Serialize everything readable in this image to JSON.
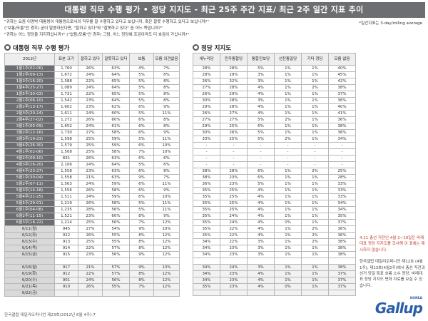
{
  "title": "대통령 직무 수행 평가 • 정당 지지도 - 최근 25주 주간 지표/ 최근 2주 일간 지표 추이",
  "questions": [
    "\"귀하는 요즘 이명박 대통령이 대통령으로서의 직무를 잘 수행하고 있다고 보십니까, 혹은 잘못 수행하고 있다고 보십니까?\"",
    "(\"보통/모름\"인 경우) 굳이 말씀하신다면, \"잘하고 있다\"와 \"잘못하고 있다\" 중 어느 쪽입니까?\"",
    "\"귀하는 어느 정당을 지지하십니까?\" (\"없음/모름\"인 경우) 그럼, 어느 정당에 조금이라도 더 호감이 가십니까?\""
  ],
  "note": "*일간지표는 3-day/rolling average",
  "approval": {
    "title": "대통령 직무 수행 평가",
    "headers": [
      "2012년",
      "표본 크기",
      "잘하고 있다",
      "잘못하고 있다",
      "보통",
      "모름 의견없음"
    ],
    "rows": [
      {
        "type": "wk",
        "label": "1월1주(02-06)",
        "n": "1,760",
        "good": "26%",
        "bad": "63%",
        "avg": "4%",
        "dk": "7%"
      },
      {
        "type": "wk",
        "label": "1월2주(09-13)",
        "n": "1,672",
        "good": "24%",
        "bad": "64%",
        "avg": "5%",
        "dk": "8%"
      },
      {
        "type": "wk",
        "label": "1월3주(16-20)",
        "n": "1,588",
        "good": "22%",
        "bad": "65%",
        "avg": "5%",
        "dk": "8%"
      },
      {
        "type": "wk",
        "label": "1월4주(25-27)",
        "n": "1,089",
        "good": "24%",
        "bad": "64%",
        "avg": "5%",
        "dk": "8%"
      },
      {
        "type": "wk",
        "label": "1월5주(30-03)",
        "n": "1,731",
        "good": "22%",
        "bad": "65%",
        "avg": "5%",
        "dk": "8%"
      },
      {
        "type": "wk",
        "label": "2월1주(06-10)",
        "n": "1,542",
        "good": "23%",
        "bad": "64%",
        "avg": "5%",
        "dk": "8%"
      },
      {
        "type": "wk",
        "label": "2월2주(13-17)",
        "n": "1,602",
        "good": "23%",
        "bad": "62%",
        "avg": "6%",
        "dk": "9%"
      },
      {
        "type": "wk",
        "label": "2월3주(20-24)",
        "n": "1,611",
        "good": "24%",
        "bad": "60%",
        "avg": "5%",
        "dk": "11%"
      },
      {
        "type": "wk",
        "label": "2월4주(27-02)",
        "n": "1,272",
        "good": "26%",
        "bad": "60%",
        "avg": "6%",
        "dk": "8%"
      },
      {
        "type": "wk",
        "label": "3월1주(05-09)",
        "n": "1,652",
        "good": "24%",
        "bad": "61%",
        "avg": "6%",
        "dk": "8%"
      },
      {
        "type": "wk",
        "label": "3월2주(12-16)",
        "n": "1,730",
        "good": "27%",
        "bad": "58%",
        "avg": "6%",
        "dk": "9%"
      },
      {
        "type": "wk",
        "label": "3월3주(19-23)",
        "n": "1,598",
        "good": "25%",
        "bad": "59%",
        "avg": "5%",
        "dk": "11%"
      },
      {
        "type": "wk",
        "label": "3월4주(26-30)",
        "n": "1,579",
        "good": "25%",
        "bad": "59%",
        "avg": "6%",
        "dk": "10%"
      },
      {
        "type": "wk",
        "label": "4월1주(02-06)",
        "n": "1,508",
        "good": "25%",
        "bad": "58%",
        "avg": "7%",
        "dk": "10%"
      },
      {
        "type": "wk",
        "label": "4월2주(09-10)",
        "n": "831",
        "good": "26%",
        "bad": "63%",
        "avg": "6%",
        "dk": "6%"
      },
      {
        "type": "wk",
        "label": "4월3주(16-20)",
        "n": "2,106",
        "good": "24%",
        "bad": "64%",
        "avg": "5%",
        "dk": "6%"
      },
      {
        "type": "wk",
        "label": "4월4주(23-27)",
        "n": "1,558",
        "good": "23%",
        "bad": "63%",
        "avg": "6%",
        "dk": "8%"
      },
      {
        "type": "wk",
        "label": "5월1주(30-04)",
        "n": "1,558",
        "good": "21%",
        "bad": "63%",
        "avg": "9%",
        "dk": "7%"
      },
      {
        "type": "wk",
        "label": "5월2주(07-11)",
        "n": "1,563",
        "good": "24%",
        "bad": "59%",
        "avg": "6%",
        "dk": "11%"
      },
      {
        "type": "wk",
        "label": "5월3주(14-18)",
        "n": "1,556",
        "good": "26%",
        "bad": "58%",
        "avg": "6%",
        "dk": "9%"
      },
      {
        "type": "wk",
        "label": "5월4주(21-25)",
        "n": "1,511",
        "good": "24%",
        "bad": "59%",
        "avg": "6%",
        "dk": "10%"
      },
      {
        "type": "wk",
        "label": "5월5주(29-01)",
        "n": "1,219",
        "good": "26%",
        "bad": "58%",
        "avg": "5%",
        "dk": "11%"
      },
      {
        "type": "wk",
        "label": "6월1주(04-08)",
        "n": "1,235",
        "good": "28%",
        "bad": "56%",
        "avg": "5%",
        "dk": "11%"
      },
      {
        "type": "wk",
        "label": "6월2주(11-15)",
        "n": "1,521",
        "good": "23%",
        "bad": "60%",
        "avg": "8%",
        "dk": "9%"
      },
      {
        "type": "wk",
        "label": "6월3주(18-22)",
        "n": "1,214",
        "good": "25%",
        "bad": "56%",
        "avg": "7%",
        "dk": "12%"
      },
      {
        "type": "dy",
        "label": "6/11(월)",
        "n": "945",
        "good": "27%",
        "bad": "54%",
        "avg": "9%",
        "dk": "10%"
      },
      {
        "type": "dy",
        "label": "6/12(화)",
        "n": "922",
        "good": "26%",
        "bad": "55%",
        "avg": "8%",
        "dk": "12%"
      },
      {
        "type": "dy",
        "label": "6/13(수)",
        "n": "913",
        "good": "25%",
        "bad": "55%",
        "avg": "8%",
        "dk": "12%"
      },
      {
        "type": "dy",
        "label": "6/14(목)",
        "n": "914",
        "good": "22%",
        "bad": "57%",
        "avg": "8%",
        "dk": "12%"
      },
      {
        "type": "dy",
        "label": "6/15(금)",
        "n": "915",
        "good": "23%",
        "bad": "56%",
        "avg": "9%",
        "dk": "12%"
      },
      {
        "type": "dy",
        "label": "",
        "n": "",
        "good": "",
        "bad": "",
        "avg": "",
        "dk": ""
      },
      {
        "type": "dy",
        "label": "6/18(월)",
        "n": "917",
        "good": "21%",
        "bad": "57%",
        "avg": "9%",
        "dk": "13%"
      },
      {
        "type": "dy",
        "label": "6/19(화)",
        "n": "912",
        "good": "22%",
        "bad": "57%",
        "avg": "8%",
        "dk": "12%"
      },
      {
        "type": "dy",
        "label": "6/20(수)",
        "n": "901",
        "good": "24%",
        "bad": "56%",
        "avg": "8%",
        "dk": "12%"
      },
      {
        "type": "dy",
        "label": "6/21(목)",
        "n": "910",
        "good": "26%",
        "bad": "55%",
        "avg": "7%",
        "dk": "12%"
      },
      {
        "type": "dy",
        "label": "6/22(금)",
        "n": "",
        "good": "",
        "bad": "",
        "avg": "",
        "dk": ""
      }
    ]
  },
  "party": {
    "title": "정당 지지도",
    "headers": [
      "새누리당",
      "민주통합당",
      "통합진보당",
      "선진통일당",
      "기타 정당",
      "모름 없음"
    ],
    "rows": [
      [
        "28%",
        "28%",
        "5%",
        "1%",
        "1%",
        "40%"
      ],
      [
        "28%",
        "29%",
        "3%",
        "1%",
        "1%",
        "45%"
      ],
      [
        "26%",
        "32%",
        "3%",
        "1%",
        "1%",
        "42%"
      ],
      [
        "27%",
        "28%",
        "4%",
        "1%",
        "2%",
        "38%"
      ],
      [
        "26%",
        "29%",
        "4%",
        "1%",
        "1%",
        "37%"
      ],
      [
        "30%",
        "28%",
        "3%",
        "1%",
        "1%",
        "36%"
      ],
      [
        "29%",
        "28%",
        "4%",
        "1%",
        "1%",
        "40%"
      ],
      [
        "26%",
        "27%",
        "4%",
        "1%",
        "1%",
        "41%"
      ],
      [
        "27%",
        "27%",
        "5%",
        "2%",
        "1%",
        "36%"
      ],
      [
        "29%",
        "25%",
        "6%",
        "1%",
        "1%",
        "38%"
      ],
      [
        "30%",
        "26%",
        "5%",
        "1%",
        "1%",
        "36%"
      ],
      [
        "33%",
        "25%",
        "5%",
        "2%",
        "1%",
        "34%"
      ],
      [
        "-",
        "-",
        "-",
        "-",
        "-",
        "-"
      ],
      [
        "-",
        "-",
        "-",
        "-",
        "-",
        "-"
      ],
      [
        "-",
        "-",
        "-",
        "-",
        "-",
        "-"
      ],
      [
        "-",
        "-",
        "-",
        "-",
        "-",
        "-"
      ],
      [
        "38%",
        "28%",
        "6%",
        "1%",
        "2%",
        "25%"
      ],
      [
        "38%",
        "23%",
        "6%",
        "1%",
        "1%",
        "28%"
      ],
      [
        "36%",
        "23%",
        "5%",
        "1%",
        "1%",
        "33%"
      ],
      [
        "35%",
        "25%",
        "4%",
        "1%",
        "1%",
        "33%"
      ],
      [
        "35%",
        "25%",
        "4%",
        "1%",
        "1%",
        "33%"
      ],
      [
        "35%",
        "25%",
        "4%",
        "1%",
        "1%",
        "34%"
      ],
      [
        "35%",
        "25%",
        "4%",
        "1%",
        "1%",
        "34%"
      ],
      [
        "35%",
        "24%",
        "4%",
        "1%",
        "1%",
        "35%"
      ],
      [
        "35%",
        "24%",
        "4%",
        "0%",
        "1%",
        "37%"
      ],
      [
        "35%",
        "22%",
        "4%",
        "1%",
        "2%",
        "36%"
      ],
      [
        "35%",
        "22%",
        "4%",
        "1%",
        "2%",
        "36%"
      ],
      [
        "34%",
        "22%",
        "3%",
        "1%",
        "2%",
        "38%"
      ],
      [
        "34%",
        "23%",
        "3%",
        "1%",
        "1%",
        "38%"
      ],
      [
        "34%",
        "23%",
        "3%",
        "1%",
        "1%",
        "38%"
      ],
      [
        "",
        "",
        "",
        "",
        "",
        ""
      ],
      [
        "34%",
        "24%",
        "3%",
        "1%",
        "1%",
        "38%"
      ],
      [
        "34%",
        "23%",
        "4%",
        "1%",
        "1%",
        "37%"
      ],
      [
        "34%",
        "23%",
        "4%",
        "1%",
        "1%",
        "37%"
      ],
      [
        "35%",
        "23%",
        "4%",
        "0%",
        "1%",
        "37%"
      ],
      [
        "",
        "",
        "",
        "",
        "",
        ""
      ]
    ]
  },
  "side_note_red": "4.11 총선 직전인 4월 2~10일은 비례대표 정당 지지도를 조사해 이 표에는 제시하지 않습니다.",
  "side_note_grey": "한국갤럽 데일리오피니언 제12호 (4월 1주), 제13호(4월2주)에서 총선 직전과 선거 당일 특표 흐름 소수 정당, 비례대표 정당 지지도 변화 자료를 보실 수 있습니다.",
  "footer": "한국갤럽 데일리오피니언 제23호(2012년 6월 4주)-7",
  "logo": "Gallup",
  "logo_small": "KOREA"
}
